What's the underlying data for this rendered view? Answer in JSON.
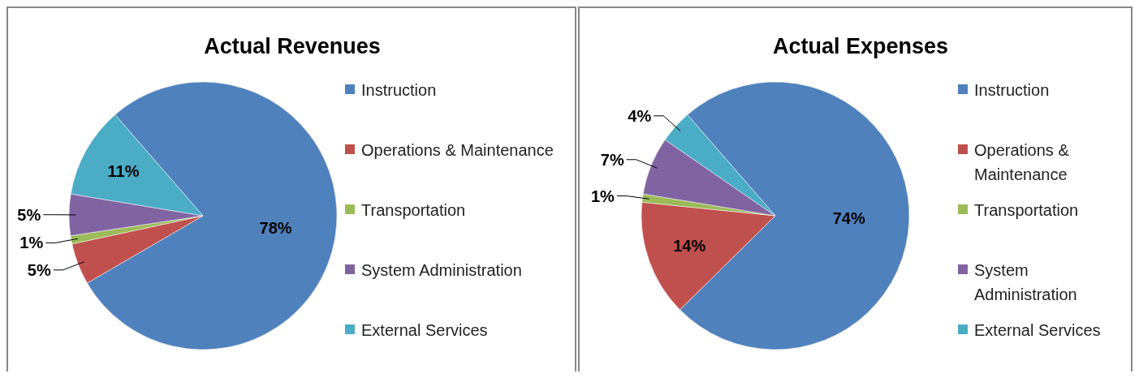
{
  "chart_data": [
    {
      "type": "pie",
      "title": "Actual Revenues",
      "categories": [
        "Instruction",
        "Operations & Maintenance",
        "Transportation",
        "System Administration",
        "External Services"
      ],
      "values": [
        78,
        5,
        1,
        5,
        11
      ],
      "colors": [
        "#4f81bd",
        "#c0504d",
        "#9bbb59",
        "#8064a2",
        "#4bacc6"
      ],
      "value_labels": [
        "78%",
        "5%",
        "1%",
        "5%",
        "11%"
      ],
      "legend": "right"
    },
    {
      "type": "pie",
      "title": "Actual Expenses",
      "categories": [
        "Instruction",
        "Operations & Maintenance",
        "Transportation",
        "System Administration",
        "External Services"
      ],
      "values": [
        74,
        14,
        1,
        7,
        4
      ],
      "colors": [
        "#4f81bd",
        "#c0504d",
        "#9bbb59",
        "#8064a2",
        "#4bacc6"
      ],
      "value_labels": [
        "74%",
        "14%",
        "1%",
        "7%",
        "4%"
      ],
      "legend": "right"
    }
  ]
}
